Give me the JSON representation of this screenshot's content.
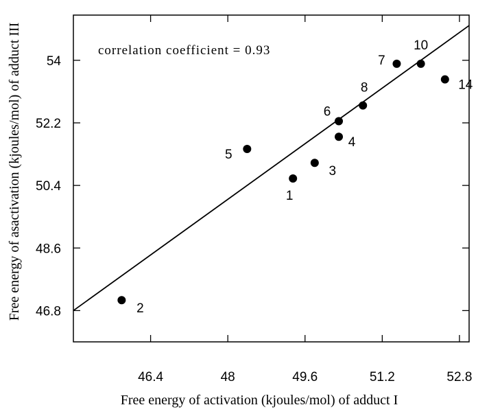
{
  "chart_data": {
    "type": "scatter",
    "title": "",
    "xlabel": "Free energy of activation (kjoules/mol) of adduct I",
    "ylabel": "Free energy of asactivation (kjoules/mol) of adduct III",
    "xlim": [
      44.8,
      53.0
    ],
    "ylim": [
      45.9,
      55.3
    ],
    "x_ticks": [
      46.4,
      48,
      49.6,
      51.2,
      52.8
    ],
    "x_tick_labels": [
      "46.4",
      "48",
      "49.6",
      "51.2",
      "52.8"
    ],
    "y_ticks": [
      46.8,
      48.6,
      50.4,
      52.2,
      54
    ],
    "y_tick_labels": [
      "46.8",
      "48.6",
      "50.4",
      "52.2",
      "54"
    ],
    "grid": false,
    "annotation": "correlation coefficient = 0.93",
    "points": [
      {
        "label": "1",
        "x": 49.35,
        "y": 50.6
      },
      {
        "label": "2",
        "x": 45.8,
        "y": 47.1
      },
      {
        "label": "3",
        "x": 49.8,
        "y": 51.05
      },
      {
        "label": "4",
        "x": 50.3,
        "y": 51.8
      },
      {
        "label": "5",
        "x": 48.4,
        "y": 51.45
      },
      {
        "label": "6",
        "x": 50.3,
        "y": 52.25
      },
      {
        "label": "7",
        "x": 51.5,
        "y": 53.9
      },
      {
        "label": "8",
        "x": 50.8,
        "y": 52.7
      },
      {
        "label": "10",
        "x": 52.0,
        "y": 53.9
      },
      {
        "label": "14",
        "x": 52.5,
        "y": 53.45
      }
    ],
    "fit_line": {
      "x": [
        44.8,
        53.0
      ],
      "y": [
        46.8,
        55.0
      ]
    }
  }
}
